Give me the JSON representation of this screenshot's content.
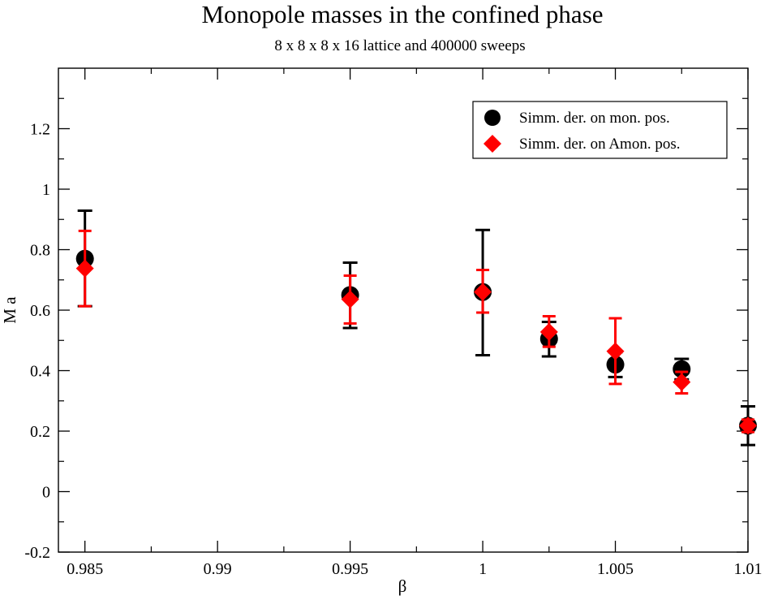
{
  "chart_data": {
    "type": "scatter",
    "title": "Monopole masses in the confined phase",
    "subtitle": "8 x 8  x 8 x 16  lattice  and 400000 sweeps",
    "xlabel": "β",
    "ylabel": "M a",
    "xlim": [
      0.984,
      1.01
    ],
    "ylim": [
      -0.2,
      1.4
    ],
    "x_ticks": [
      0.985,
      0.99,
      0.995,
      1.0,
      1.005,
      1.01
    ],
    "x_tick_labels": [
      "0.985",
      "0.99",
      "0.995",
      "1",
      "1.005",
      "1.01"
    ],
    "y_ticks": [
      -0.2,
      0,
      0.2,
      0.4,
      0.6,
      0.8,
      1.0,
      1.2
    ],
    "y_tick_labels": [
      "-0.2",
      "0",
      "0.2",
      "0.4",
      "0.6",
      "0.8",
      "1",
      "1.2"
    ],
    "grid": false,
    "legend_position": "top-right",
    "series": [
      {
        "name": "Simm. der. on mon. pos.",
        "marker": "circle",
        "color": "#000000",
        "x": [
          0.985,
          0.995,
          1.0,
          1.0025,
          1.005,
          1.0075,
          1.01
        ],
        "y": [
          0.77,
          0.65,
          0.66,
          0.505,
          0.42,
          0.405,
          0.218
        ],
        "err_low": [
          0.613,
          0.541,
          0.451,
          0.447,
          0.379,
          0.371,
          0.154
        ],
        "err_high": [
          0.929,
          0.757,
          0.865,
          0.561,
          0.461,
          0.439,
          0.282
        ]
      },
      {
        "name": "Simm. der. on Amon. pos.",
        "marker": "diamond",
        "color": "#ff0000",
        "x": [
          0.985,
          0.995,
          1.0,
          1.0025,
          1.005,
          1.0075,
          1.01
        ],
        "y": [
          0.738,
          0.636,
          0.66,
          0.528,
          0.464,
          0.362,
          0.218
        ],
        "err_low": [
          0.613,
          0.556,
          0.592,
          0.479,
          0.356,
          0.325,
          0.197
        ],
        "err_high": [
          0.862,
          0.714,
          0.733,
          0.58,
          0.573,
          0.396,
          0.238
        ]
      }
    ]
  }
}
